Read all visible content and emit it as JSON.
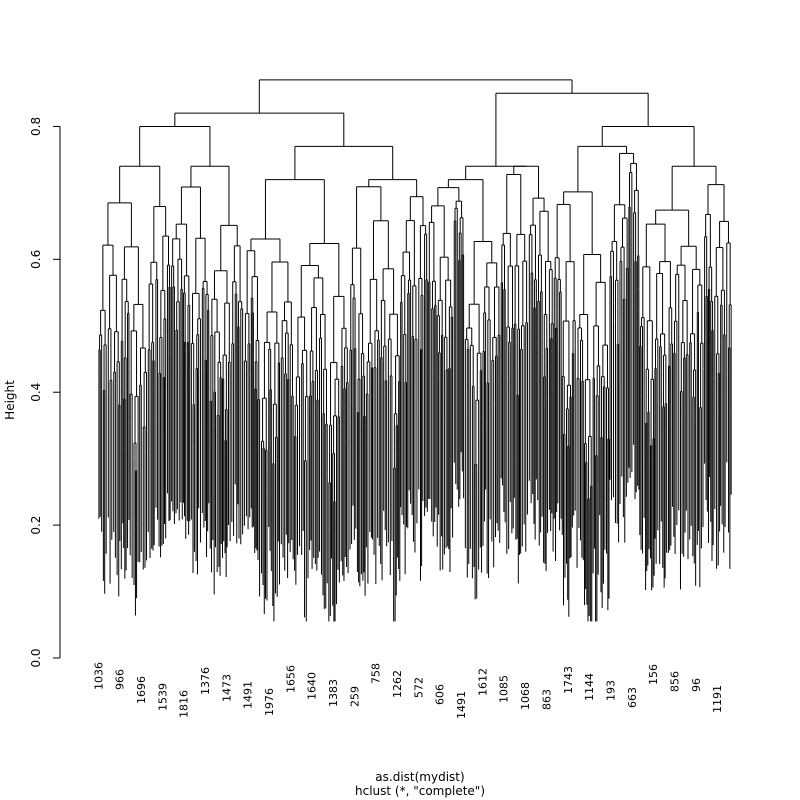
{
  "chart_data": {
    "type": "dendrogram",
    "title": "",
    "xlabel": "as.dist(mydist)",
    "sublabel": "hclust (*, \"complete\")",
    "ylabel": "Height",
    "ylim": [
      0,
      0.9
    ],
    "yticks": [
      0.0,
      0.2,
      0.4,
      0.6,
      0.8
    ],
    "ytick_labels": [
      "0.0",
      "0.2",
      "0.4",
      "0.6",
      "0.8"
    ],
    "root_height": 0.87,
    "merges": [
      {
        "id": "root",
        "height": 0.87,
        "children": [
          "L",
          "R"
        ]
      },
      {
        "id": "L",
        "height": 0.82,
        "children": [
          "LL",
          "LR"
        ]
      },
      {
        "id": "R",
        "height": 0.85,
        "children": [
          "RL",
          "RR"
        ]
      },
      {
        "id": "LL",
        "height": 0.8,
        "children": [
          "LL1",
          "LL2"
        ]
      },
      {
        "id": "LR",
        "height": 0.77,
        "children": [
          "LR1",
          "LR2"
        ]
      },
      {
        "id": "RL",
        "height": 0.74,
        "children": [
          "RL1",
          "RL2"
        ]
      },
      {
        "id": "RR",
        "height": 0.8,
        "children": [
          "RR1",
          "RR2"
        ]
      },
      {
        "id": "LL1",
        "height": 0.74,
        "children": [],
        "span": [
          0.02,
          0.13
        ]
      },
      {
        "id": "LL2",
        "height": 0.74,
        "children": [],
        "span": [
          0.13,
          0.24
        ]
      },
      {
        "id": "LR1",
        "height": 0.72,
        "children": [],
        "span": [
          0.24,
          0.4
        ]
      },
      {
        "id": "LR2",
        "height": 0.72,
        "children": [],
        "span": [
          0.4,
          0.52
        ]
      },
      {
        "id": "RL1",
        "height": 0.72,
        "children": [],
        "span": [
          0.52,
          0.63
        ]
      },
      {
        "id": "RL2",
        "height": 0.74,
        "children": [],
        "span": [
          0.63,
          0.71
        ]
      },
      {
        "id": "RR1",
        "height": 0.77,
        "children": [],
        "span": [
          0.71,
          0.84
        ]
      },
      {
        "id": "RR2",
        "height": 0.74,
        "children": [],
        "span": [
          0.84,
          0.98
        ]
      }
    ],
    "visible_leaf_labels": [
      "1036",
      "966",
      "1696",
      "1539",
      "1816",
      "1376",
      "1473",
      "1491",
      "1976",
      "1656",
      "1640",
      "1383",
      "259",
      "758",
      "1262",
      "572",
      "606",
      "1491",
      "1612",
      "1085",
      "1068",
      "863",
      "1743",
      "1144",
      "193",
      "663",
      "156",
      "856",
      "96",
      "1191"
    ]
  }
}
